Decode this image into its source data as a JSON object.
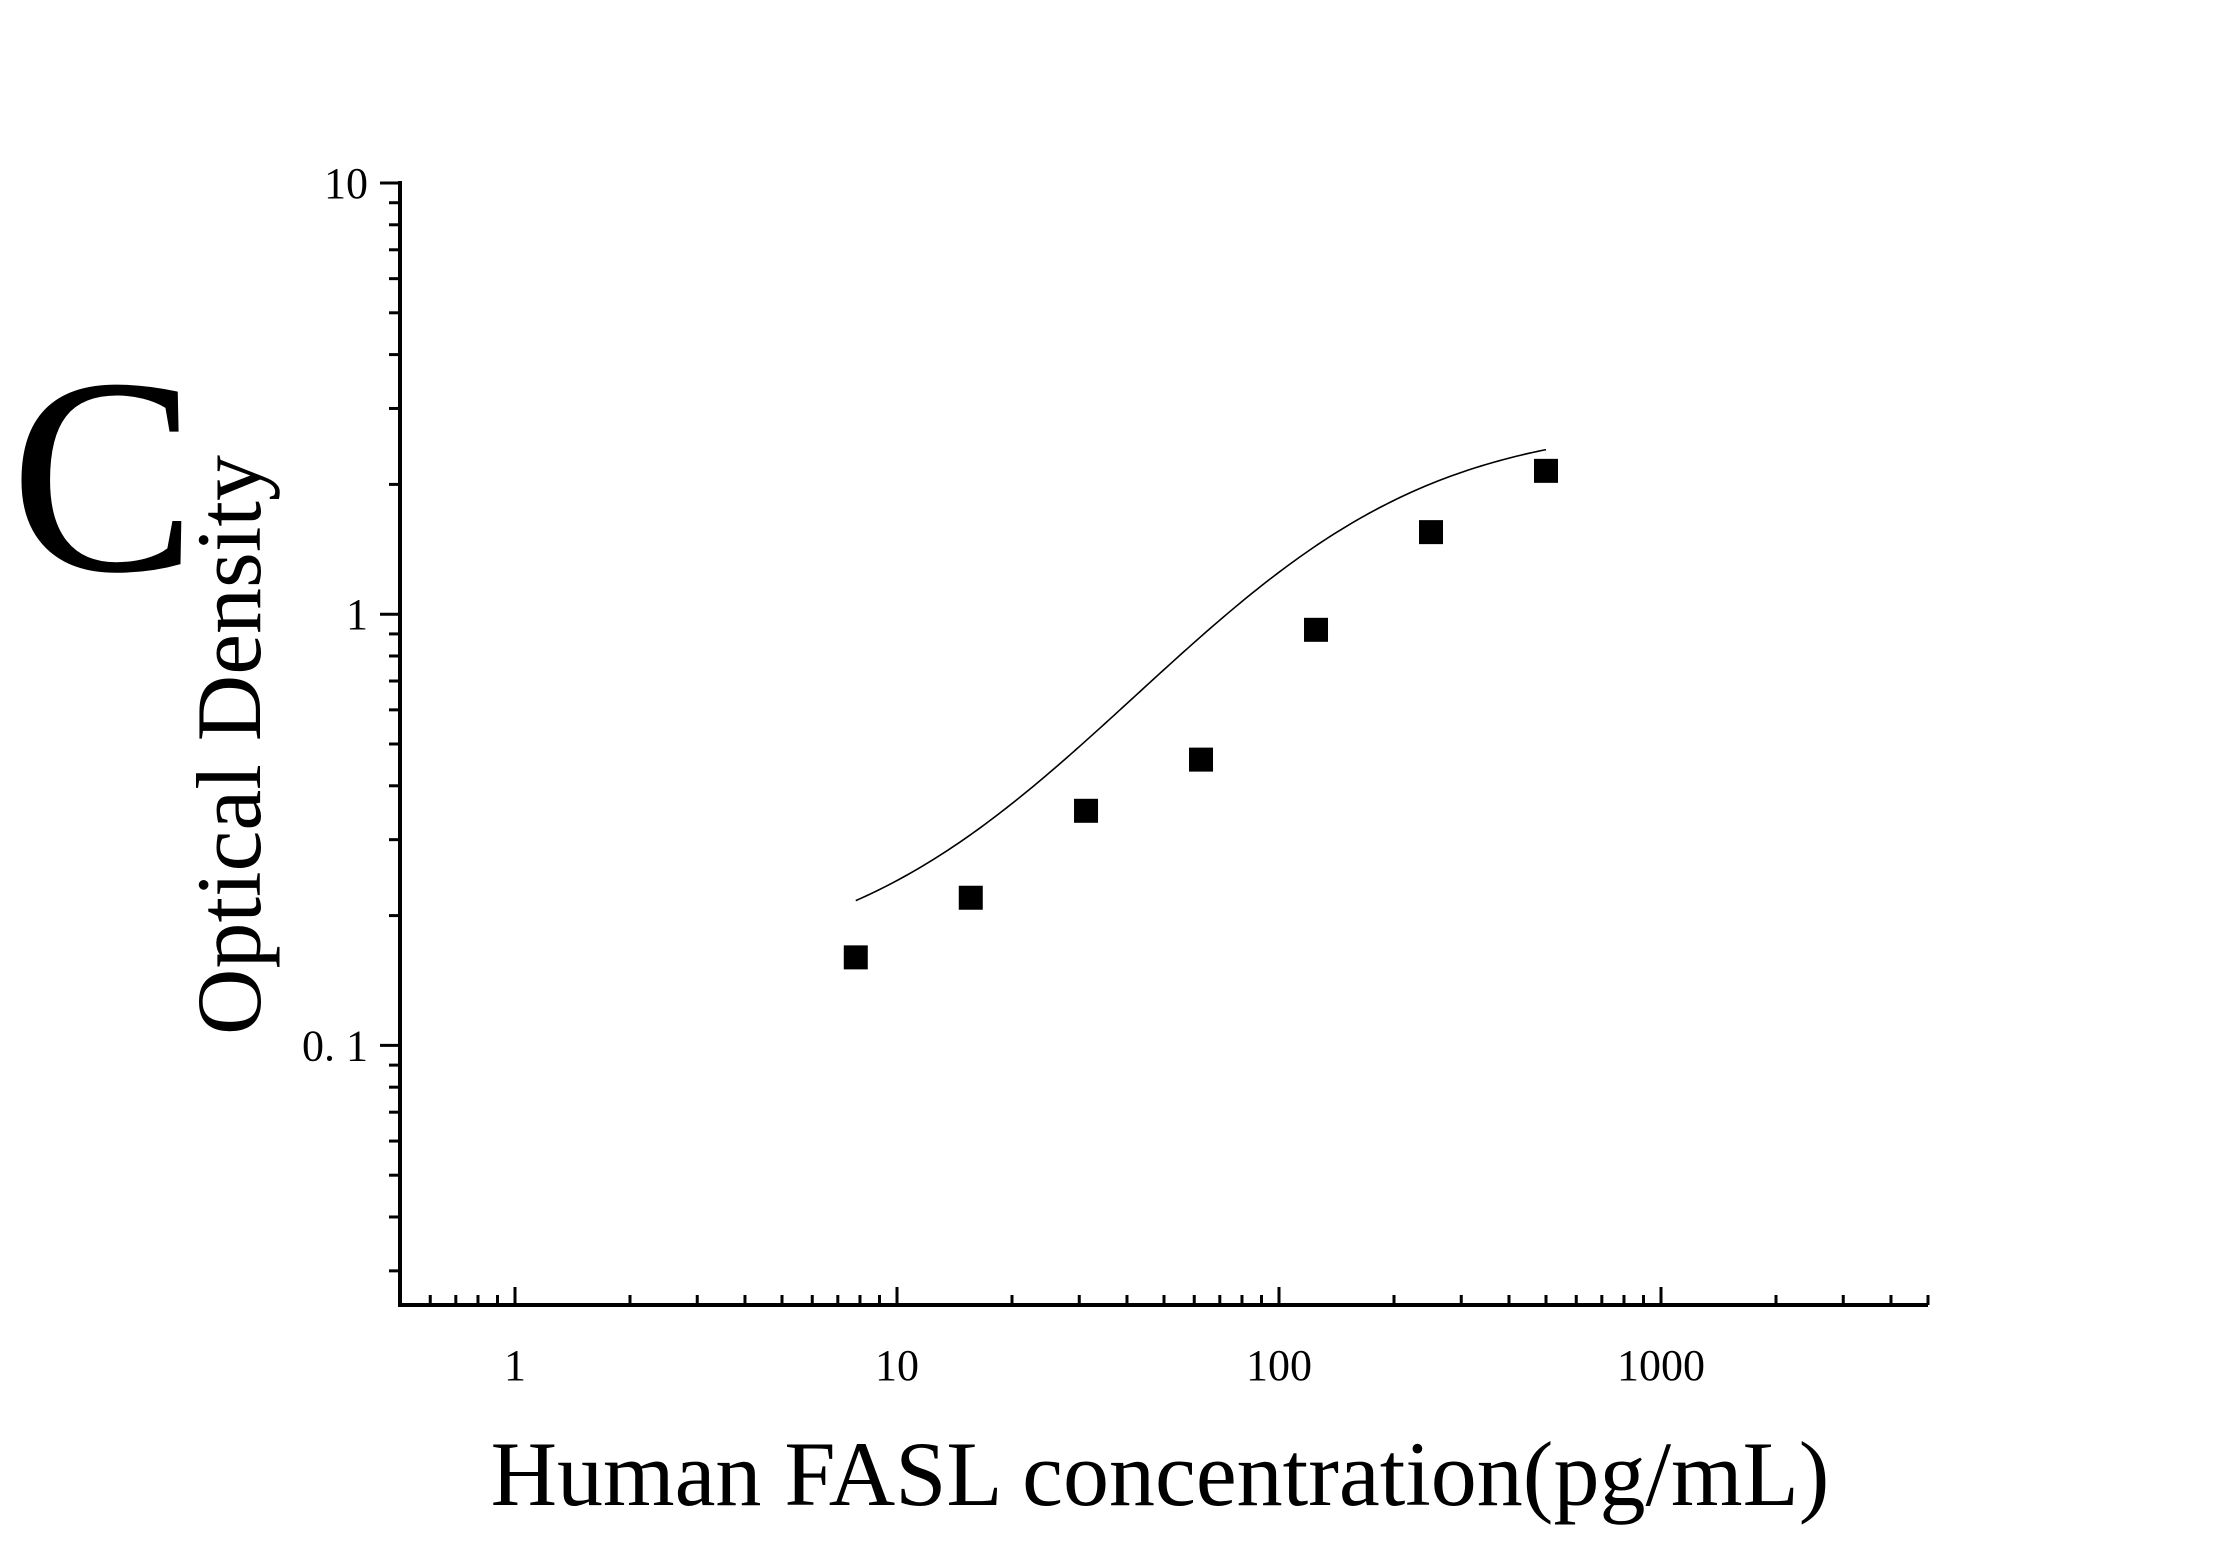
{
  "panel_label": "C",
  "chart_data": {
    "type": "scatter",
    "x_scale": "log",
    "y_scale": "log",
    "xlabel": "Human FASL concentration(pg/mL)",
    "ylabel": "Optical Density",
    "xlim": [
      0.5,
      5000
    ],
    "ylim": [
      0.025,
      10
    ],
    "x_ticks": [
      {
        "value": 1,
        "label": "1"
      },
      {
        "value": 10,
        "label": "10"
      },
      {
        "value": 100,
        "label": "100"
      },
      {
        "value": 1000,
        "label": "1000"
      }
    ],
    "y_ticks": [
      {
        "value": 0.1,
        "label": "0. 1"
      },
      {
        "value": 1,
        "label": "1"
      },
      {
        "value": 10,
        "label": "10"
      }
    ],
    "grid": false,
    "points": {
      "x": [
        7.8,
        15.6,
        31.25,
        62.5,
        125,
        250,
        500
      ],
      "y": [
        0.16,
        0.22,
        0.35,
        0.46,
        0.92,
        1.55,
        2.15
      ]
    },
    "fit_curve": {
      "bottom": 0.15,
      "top": 2.8,
      "ec50": 130,
      "hill": 1.3,
      "x_range": [
        7.8,
        500
      ]
    },
    "colors": {
      "marker": "#000000",
      "axis": "#000000",
      "curve": "#000000"
    }
  }
}
